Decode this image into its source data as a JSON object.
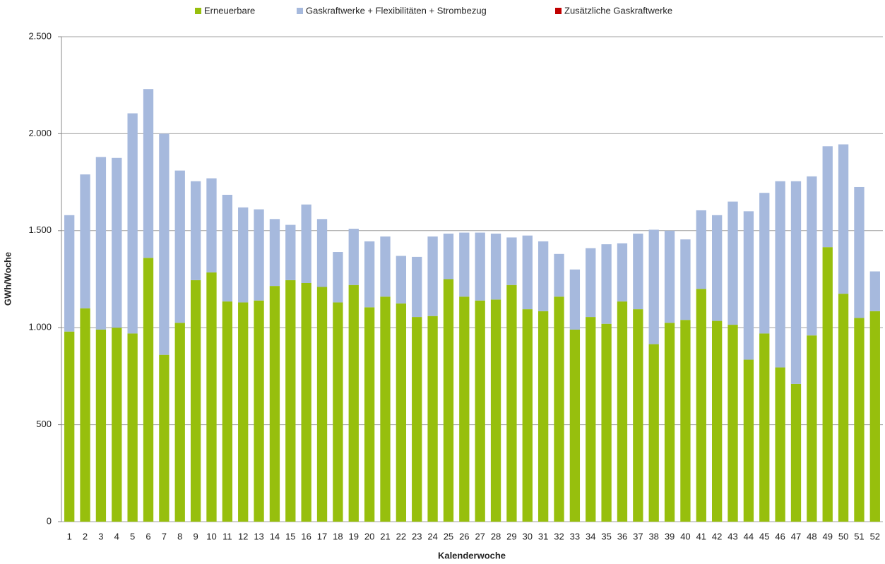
{
  "chart_data": {
    "type": "stacked-bar",
    "x_label": "Kalenderwoche",
    "y_label": "GWh/Woche",
    "categories": [
      "1",
      "2",
      "3",
      "4",
      "5",
      "6",
      "7",
      "8",
      "9",
      "10",
      "11",
      "12",
      "13",
      "14",
      "15",
      "16",
      "17",
      "18",
      "19",
      "20",
      "21",
      "22",
      "23",
      "24",
      "25",
      "26",
      "27",
      "28",
      "29",
      "30",
      "31",
      "32",
      "33",
      "34",
      "35",
      "36",
      "37",
      "38",
      "39",
      "40",
      "41",
      "42",
      "43",
      "44",
      "45",
      "46",
      "47",
      "48",
      "49",
      "50",
      "51",
      "52"
    ],
    "series": [
      {
        "name": "Erneuerbare",
        "color": "#97bf0d",
        "values": [
          980,
          1100,
          990,
          1000,
          970,
          1360,
          860,
          1025,
          1245,
          1285,
          1135,
          1130,
          1140,
          1215,
          1245,
          1230,
          1210,
          1130,
          1220,
          1105,
          1160,
          1125,
          1055,
          1060,
          1250,
          1160,
          1140,
          1145,
          1220,
          1095,
          1085,
          1160,
          990,
          1055,
          1020,
          1135,
          1095,
          915,
          1025,
          1040,
          1200,
          1035,
          1015,
          835,
          970,
          795,
          710,
          960,
          1415,
          1175,
          1050,
          1085
        ]
      },
      {
        "name": "Gaskraftwerke + Flexibilitäten + Strombezug",
        "color": "#a6b9dd",
        "values": [
          600,
          690,
          890,
          875,
          1135,
          870,
          1140,
          785,
          510,
          485,
          550,
          490,
          470,
          345,
          285,
          405,
          350,
          260,
          290,
          340,
          310,
          245,
          310,
          410,
          235,
          330,
          350,
          340,
          245,
          380,
          360,
          220,
          310,
          355,
          410,
          300,
          390,
          590,
          475,
          415,
          405,
          545,
          635,
          765,
          725,
          960,
          1045,
          820,
          520,
          770,
          675,
          205
        ]
      },
      {
        "name": "Zusätzliche Gaskraftwerke",
        "color": "#c00000",
        "values": [
          0,
          0,
          0,
          0,
          0,
          0,
          0,
          0,
          0,
          0,
          0,
          0,
          0,
          0,
          0,
          0,
          0,
          0,
          0,
          0,
          0,
          0,
          0,
          0,
          0,
          0,
          0,
          0,
          0,
          0,
          0,
          0,
          0,
          0,
          0,
          0,
          0,
          0,
          0,
          0,
          0,
          0,
          0,
          0,
          0,
          0,
          0,
          0,
          0,
          0,
          0,
          0
        ]
      }
    ],
    "ylim": [
      0,
      2500
    ],
    "yticks": [
      0,
      500,
      {
        "value": 1000,
        "label": "1.000"
      },
      {
        "value": 1500,
        "label": "1.500"
      },
      {
        "value": 2000,
        "label": "2.000"
      },
      {
        "value": 2500,
        "label": "2.500"
      }
    ],
    "grid": true,
    "legend": "top"
  }
}
